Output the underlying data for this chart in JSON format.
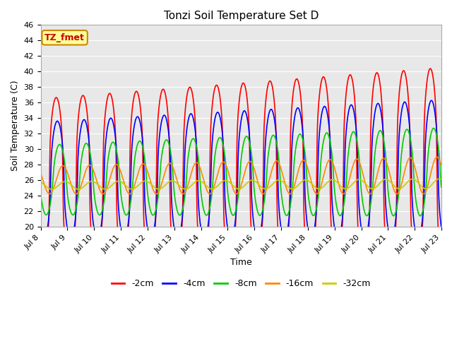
{
  "title": "Tonzi Soil Temperature Set D",
  "xlabel": "Time",
  "ylabel": "Soil Temperature (C)",
  "ylim": [
    20,
    46
  ],
  "xlim": [
    0,
    360
  ],
  "bg_color": "#e8e8e8",
  "fig_color": "#ffffff",
  "annotation_text": "TZ_fmet",
  "annotation_bg": "#ffff99",
  "annotation_border": "#cc8800",
  "series": {
    "-2cm": {
      "color": "#ff0000",
      "lw": 1.2
    },
    "-4cm": {
      "color": "#0000ff",
      "lw": 1.2
    },
    "-8cm": {
      "color": "#00cc00",
      "lw": 1.2
    },
    "-16cm": {
      "color": "#ff8800",
      "lw": 1.2
    },
    "-32cm": {
      "color": "#cccc00",
      "lw": 1.2
    }
  },
  "xtick_labels": [
    "Jul 8",
    "Jul 9",
    "Jul 10",
    "Jul 11",
    "Jul 12",
    "Jul 13",
    "Jul 14",
    "Jul 15",
    "Jul 16",
    "Jul 17",
    "Jul 18",
    "Jul 19",
    "Jul 20",
    "Jul 21",
    "Jul 22",
    "Jul 23"
  ],
  "xtick_positions": [
    0,
    24,
    48,
    72,
    96,
    120,
    144,
    168,
    192,
    216,
    240,
    264,
    288,
    312,
    336,
    360
  ]
}
